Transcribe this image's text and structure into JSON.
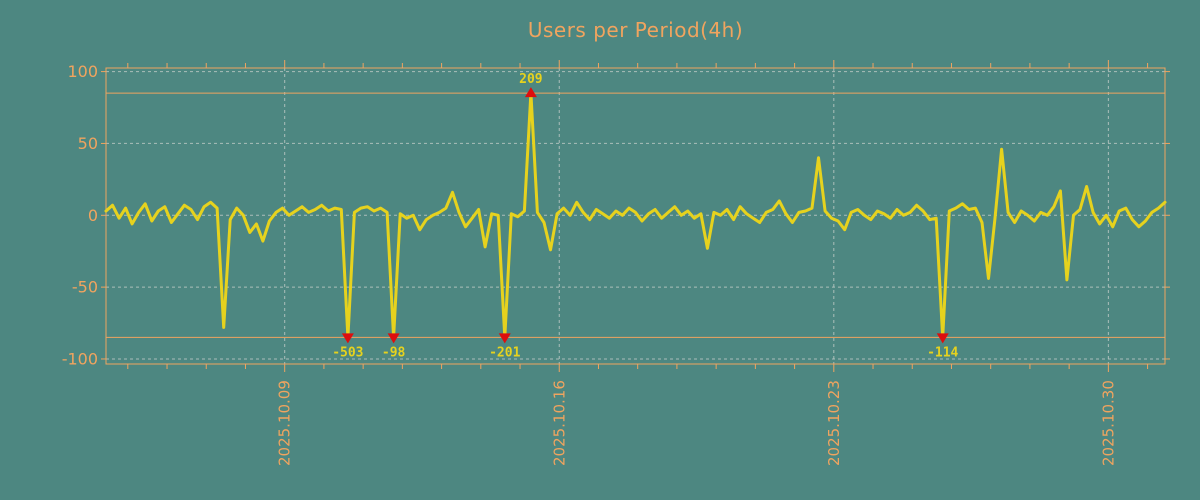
{
  "title": "Users per Period(4h)",
  "colors": {
    "background": "#4D8781",
    "axis": "#F0A45F",
    "grid": "#BCC8C4",
    "line": "#E6D21E",
    "marker": "#DD0E0E",
    "outlier_label": "#E6D21E"
  },
  "chart_data": {
    "type": "line",
    "title": "Users per Period(4h)",
    "xlabel": "",
    "ylabel": "",
    "ylim": [
      -100,
      100
    ],
    "y_ticks": [
      100,
      50,
      0,
      -50,
      -100
    ],
    "x_ticks": [
      {
        "label": "2025.10.09",
        "day": 4.556
      },
      {
        "label": "2025.10.16",
        "day": 11.556
      },
      {
        "label": "2025.10.23",
        "day": 18.556
      },
      {
        "label": "2025.10.30",
        "day": 25.556
      }
    ],
    "period_hours": 4,
    "days_span": 27,
    "clip_value": 85,
    "grid": true,
    "legend_position": "none",
    "values": [
      3,
      7,
      -2,
      5,
      -6,
      2,
      8,
      -4,
      3,
      6,
      -5,
      1,
      7,
      4,
      -3,
      6,
      9,
      5,
      -78,
      -3,
      5,
      0,
      -12,
      -6,
      -18,
      -4,
      2,
      5,
      0,
      3,
      6,
      2,
      4,
      7,
      3,
      5,
      4,
      -503,
      2,
      5,
      6,
      3,
      5,
      2,
      -98,
      1,
      -2,
      0,
      -10,
      -3,
      0,
      2,
      5,
      16,
      2,
      -8,
      -2,
      4,
      -22,
      1,
      0,
      -201,
      1,
      -1,
      3,
      209,
      2,
      -5,
      -24,
      1,
      5,
      0,
      9,
      2,
      -3,
      4,
      1,
      -2,
      3,
      0,
      5,
      2,
      -4,
      1,
      4,
      -2,
      2,
      6,
      0,
      3,
      -2,
      1,
      -23,
      2,
      0,
      4,
      -3,
      6,
      1,
      -2,
      -5,
      2,
      4,
      10,
      1,
      -5,
      2,
      3,
      5,
      40,
      3,
      -2,
      -4,
      -10,
      2,
      4,
      0,
      -3,
      3,
      1,
      -2,
      4,
      0,
      2,
      7,
      3,
      -3,
      -2,
      -114,
      3,
      5,
      8,
      4,
      5,
      -5,
      -44,
      -2,
      46,
      2,
      -5,
      3,
      0,
      -4,
      2,
      0,
      6,
      17,
      -45,
      0,
      4,
      20,
      2,
      -6,
      0,
      -8,
      3,
      5,
      -3,
      -8,
      -4,
      2,
      5,
      9
    ],
    "outliers": [
      {
        "index": 37,
        "value": -503,
        "label": "-503",
        "direction": "down"
      },
      {
        "index": 44,
        "value": -98,
        "label": "-98",
        "direction": "down"
      },
      {
        "index": 61,
        "value": -201,
        "label": "-201",
        "direction": "down"
      },
      {
        "index": 65,
        "value": 209,
        "label": "209",
        "direction": "up"
      },
      {
        "index": 128,
        "value": -114,
        "label": "-114",
        "direction": "down"
      }
    ]
  }
}
